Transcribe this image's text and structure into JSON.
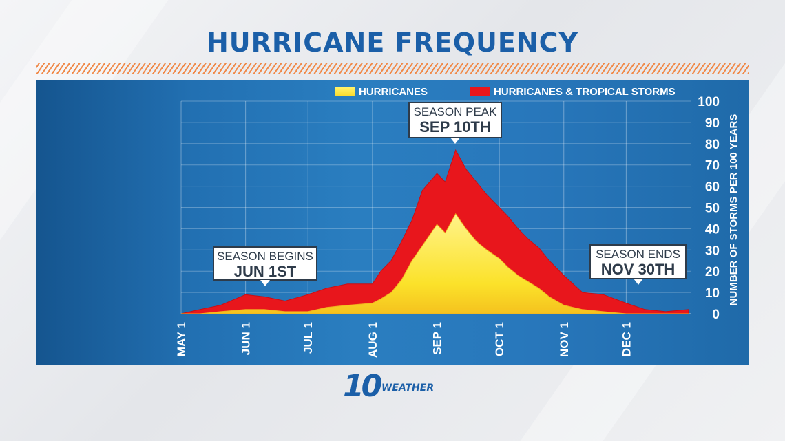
{
  "title": "HURRICANE FREQUENCY",
  "chart_data": {
    "type": "area",
    "title": "HURRICANE FREQUENCY",
    "xlabel": "",
    "ylabel": "NUMBER OF STORMS PER 100 YEARS",
    "ylim": [
      0,
      100
    ],
    "yticks": [
      0,
      10,
      20,
      30,
      40,
      50,
      60,
      70,
      80,
      90,
      100
    ],
    "x_ticks": [
      "MAY 1",
      "JUN 1",
      "JUL 1",
      "AUG 1",
      "SEP 1",
      "OCT 1",
      "NOV 1",
      "DEC 1"
    ],
    "legend": {
      "position": "top-right",
      "entries": [
        {
          "label": "HURRICANES",
          "color": "#fbe22a"
        },
        {
          "label": "HURRICANES & TROPICAL STORMS",
          "color": "#e8161c"
        }
      ]
    },
    "x_dates": [
      "May 1",
      "May 10",
      "May 20",
      "Jun 1",
      "Jun 10",
      "Jun 20",
      "Jul 1",
      "Jul 10",
      "Jul 20",
      "Aug 1",
      "Aug 5",
      "Aug 10",
      "Aug 15",
      "Aug 20",
      "Aug 25",
      "Sep 1",
      "Sep 5",
      "Sep 10",
      "Sep 15",
      "Sep 20",
      "Sep 25",
      "Oct 1",
      "Oct 5",
      "Oct 10",
      "Oct 15",
      "Oct 20",
      "Oct 25",
      "Nov 1",
      "Nov 10",
      "Nov 20",
      "Dec 1",
      "Dec 10",
      "Dec 20",
      "Dec 31"
    ],
    "series": [
      {
        "name": "HURRICANES & TROPICAL STORMS",
        "color": "#e8161c",
        "values": [
          0,
          2,
          4,
          9,
          8,
          6,
          9,
          12,
          14,
          14,
          20,
          25,
          34,
          44,
          58,
          66,
          62,
          77,
          68,
          62,
          56,
          50,
          46,
          40,
          35,
          31,
          25,
          18,
          10,
          9,
          5,
          2,
          1,
          2
        ]
      },
      {
        "name": "HURRICANES",
        "color": "#fbe22a",
        "values": [
          0,
          0,
          1,
          2,
          2,
          1,
          1,
          3,
          4,
          5,
          7,
          10,
          16,
          25,
          32,
          42,
          38,
          47,
          40,
          34,
          30,
          26,
          22,
          18,
          15,
          12,
          8,
          4,
          2,
          1,
          0,
          0,
          0,
          0
        ]
      }
    ],
    "annotations": [
      {
        "id": "begins",
        "line1": "SEASON BEGINS",
        "line2": "JUN 1ST",
        "date": "Jun 1"
      },
      {
        "id": "peak",
        "line1": "SEASON PEAK",
        "line2": "SEP 10TH",
        "date": "Sep 10"
      },
      {
        "id": "ends",
        "line1": "SEASON ENDS",
        "line2": "NOV 30TH",
        "date": "Nov 30"
      }
    ]
  },
  "brand": {
    "number": "10",
    "word": "WEATHER"
  },
  "colors": {
    "title": "#1b5fa8",
    "panel": "#2270b2",
    "hatch": "#f08a4a",
    "callout_border": "#2e3b4a"
  }
}
